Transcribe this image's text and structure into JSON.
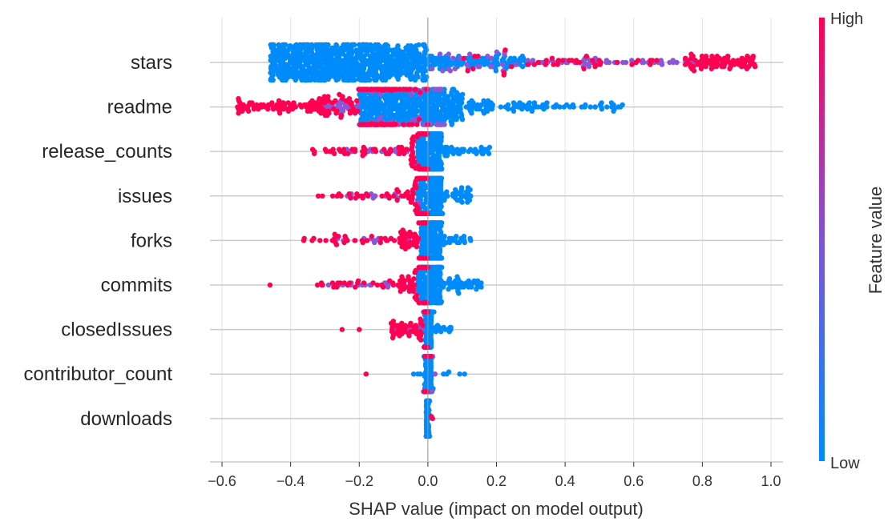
{
  "chart_data": {
    "type": "scatter",
    "subtype": "shap-beeswarm",
    "title": "",
    "xlabel": "SHAP value (impact on model output)",
    "ylabel": "",
    "xlim": [
      -0.63,
      1.03
    ],
    "xticks": [
      -0.6,
      -0.4,
      -0.2,
      0.0,
      0.2,
      0.4,
      0.6,
      0.8,
      1.0
    ],
    "xtick_labels": [
      "−0.6",
      "−0.4",
      "−0.2",
      "0.0",
      "0.2",
      "0.4",
      "0.6",
      "0.8",
      "1.0"
    ],
    "grid": true,
    "colorbar": {
      "label": "Feature value",
      "high_label": "High",
      "low_label": "Low",
      "low_color": "#008bfb",
      "high_color": "#ff0052"
    },
    "features": [
      {
        "name": "stars",
        "low": [
          [
            -0.46,
            -0.12,
            600
          ],
          [
            -0.12,
            0.0,
            160
          ],
          [
            0.0,
            0.3,
            120
          ]
        ],
        "mid": [
          [
            0.0,
            0.8,
            50
          ],
          [
            0.05,
            0.7,
            30
          ]
        ],
        "high": [
          [
            0.1,
            0.7,
            40
          ],
          [
            0.75,
            0.96,
            90
          ]
        ]
      },
      {
        "name": "readme",
        "low": [
          [
            -0.2,
            0.1,
            400
          ],
          [
            0.1,
            0.3,
            60
          ],
          [
            0.3,
            0.57,
            40
          ]
        ],
        "mid": [
          [
            -0.3,
            0.05,
            120
          ]
        ],
        "high": [
          [
            -0.56,
            -0.1,
            160
          ],
          [
            -0.2,
            0.0,
            50
          ]
        ]
      },
      {
        "name": "release_counts",
        "low": [
          [
            -0.03,
            0.04,
            220
          ],
          [
            0.04,
            0.18,
            40
          ]
        ],
        "mid": [
          [
            -0.25,
            0.0,
            20
          ]
        ],
        "high": [
          [
            -0.34,
            -0.05,
            40
          ],
          [
            -0.05,
            0.0,
            40
          ]
        ]
      },
      {
        "name": "issues",
        "low": [
          [
            -0.03,
            0.04,
            220
          ],
          [
            0.04,
            0.13,
            35
          ]
        ],
        "mid": [
          [
            -0.25,
            0.0,
            15
          ]
        ],
        "high": [
          [
            -0.33,
            -0.05,
            30
          ],
          [
            -0.05,
            0.0,
            40
          ]
        ]
      },
      {
        "name": "forks",
        "low": [
          [
            -0.02,
            0.04,
            220
          ],
          [
            0.04,
            0.13,
            25
          ]
        ],
        "mid": [
          [
            -0.27,
            -0.05,
            15
          ]
        ],
        "high": [
          [
            -0.39,
            -0.08,
            30
          ],
          [
            -0.08,
            0.0,
            50
          ]
        ]
      },
      {
        "name": "commits",
        "low": [
          [
            -0.03,
            0.04,
            220
          ],
          [
            0.04,
            0.16,
            45
          ]
        ],
        "mid": [
          [
            -0.3,
            0.0,
            20
          ]
        ],
        "high": [
          [
            -0.46,
            -0.46,
            1
          ],
          [
            -0.33,
            -0.05,
            30
          ],
          [
            -0.08,
            0.0,
            40
          ]
        ]
      },
      {
        "name": "closedIssues",
        "low": [
          [
            -0.01,
            0.01,
            200
          ],
          [
            0.0,
            0.07,
            20
          ]
        ],
        "mid": [
          [
            -0.1,
            0.0,
            10
          ]
        ],
        "high": [
          [
            -0.25,
            -0.25,
            1
          ],
          [
            -0.2,
            -0.2,
            1
          ],
          [
            -0.11,
            0.0,
            50
          ]
        ]
      },
      {
        "name": "contributor_count",
        "low": [
          [
            -0.01,
            0.01,
            150
          ],
          [
            -0.05,
            0.12,
            15
          ]
        ],
        "mid": [
          [
            -0.03,
            0.03,
            5
          ]
        ],
        "high": [
          [
            -0.18,
            -0.18,
            1
          ],
          [
            -0.01,
            0.01,
            6
          ]
        ]
      },
      {
        "name": "downloads",
        "low": [
          [
            -0.005,
            0.005,
            140
          ]
        ],
        "mid": [],
        "high": [
          [
            0.01,
            0.015,
            2
          ]
        ]
      }
    ]
  }
}
